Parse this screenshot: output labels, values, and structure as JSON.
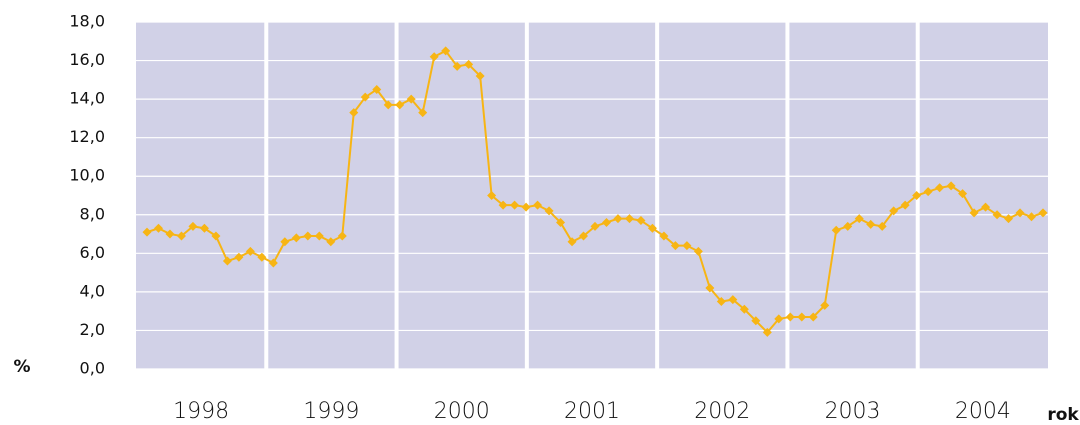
{
  "chart_data": {
    "type": "line",
    "y_label": "%",
    "x_label": "rok",
    "years": [
      "1998",
      "1999",
      "2000",
      "2001",
      "2002",
      "2003",
      "2004"
    ],
    "values": [
      7.1,
      7.3,
      7.0,
      6.9,
      7.4,
      7.3,
      6.9,
      5.6,
      5.8,
      6.1,
      5.8,
      5.5,
      6.6,
      6.8,
      6.9,
      6.9,
      6.6,
      6.9,
      13.3,
      14.1,
      14.5,
      13.7,
      13.7,
      14.0,
      13.3,
      16.2,
      16.5,
      15.7,
      15.8,
      15.2,
      9.0,
      8.5,
      8.5,
      8.4,
      8.5,
      8.2,
      7.6,
      6.6,
      6.9,
      7.4,
      7.6,
      7.8,
      7.8,
      7.7,
      7.3,
      6.9,
      6.4,
      6.4,
      6.1,
      4.2,
      3.5,
      3.6,
      3.1,
      2.5,
      1.9,
      2.6,
      2.7,
      2.7,
      2.7,
      3.3,
      7.2,
      7.4,
      7.8,
      7.5,
      7.4,
      8.2,
      8.5,
      9.0,
      9.2,
      9.4,
      9.5,
      9.1,
      8.1,
      8.4,
      8.0,
      7.8,
      8.1,
      7.9,
      8.1
    ],
    "color": "#f7b514",
    "ylim": [
      0,
      18
    ],
    "yticks": [
      {
        "value": 0,
        "label": "0,0"
      },
      {
        "value": 2,
        "label": "2,0"
      },
      {
        "value": 4,
        "label": "4,0"
      },
      {
        "value": 6,
        "label": "6,0"
      },
      {
        "value": 8,
        "label": "8,0"
      },
      {
        "value": 10,
        "label": "10,0"
      },
      {
        "value": 12,
        "label": "12,0"
      },
      {
        "value": 14,
        "label": "14,0"
      },
      {
        "value": 16,
        "label": "16,0"
      },
      {
        "value": 18,
        "label": "18,0"
      }
    ],
    "grid": true
  }
}
